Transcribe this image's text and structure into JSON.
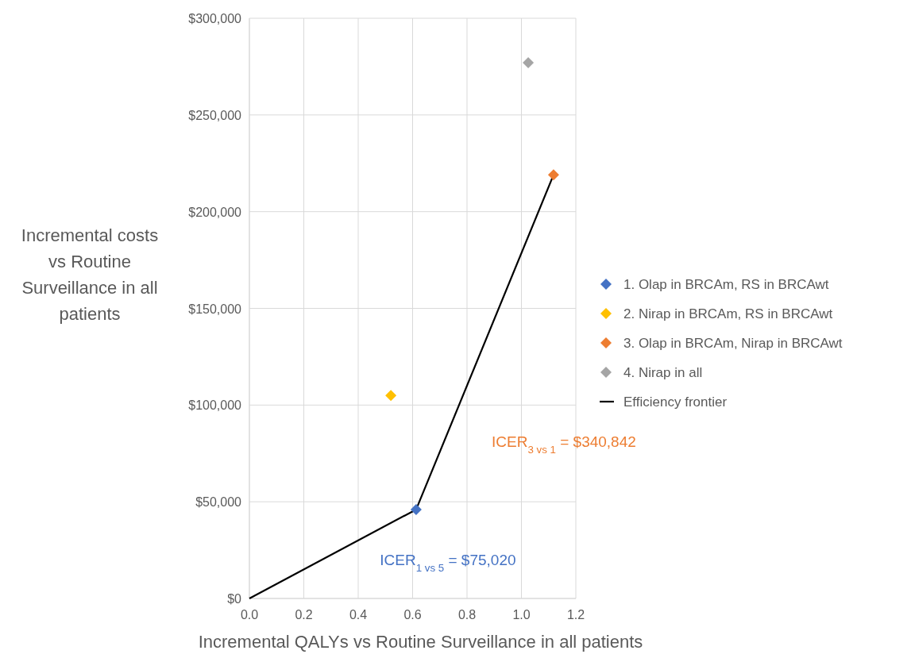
{
  "chart_data": {
    "type": "scatter",
    "xlabel": "Incremental QALYs vs Routine Surveillance in all patients",
    "ylabel": "Incremental costs vs Routine Surveillance in all patients",
    "xlim": [
      0,
      1.2
    ],
    "xticks": [
      {
        "value": 0,
        "label": "0.0"
      },
      {
        "value": 0.2,
        "label": "0.2"
      },
      {
        "value": 0.4,
        "label": "0.4"
      },
      {
        "value": 0.6,
        "label": "0.6"
      },
      {
        "value": 0.8,
        "label": "0.8"
      },
      {
        "value": 1,
        "label": "1.0"
      },
      {
        "value": 1.2,
        "label": "1.2"
      }
    ],
    "ylim": [
      0,
      300000
    ],
    "yticks": [
      {
        "value": 0,
        "label": "$0"
      },
      {
        "value": 50000,
        "label": "$50,000"
      },
      {
        "value": 100000,
        "label": "$100,000"
      },
      {
        "value": 150000,
        "label": "$150,000"
      },
      {
        "value": 200000,
        "label": "$200,000"
      },
      {
        "value": 250000,
        "label": "$250,000"
      },
      {
        "value": 300000,
        "label": "$300,000"
      }
    ],
    "grid": true,
    "legend": "right",
    "marker": "diamond",
    "series": [
      {
        "name": "1. Olap in BRCAm, RS in BRCAwt",
        "color": "#4472c4",
        "x": [
          0.613
        ],
        "values": [
          46000
        ]
      },
      {
        "name": "2. Nirap in BRCAm, RS in BRCAwt",
        "color": "#ffc000",
        "x": [
          0.52
        ],
        "values": [
          105000
        ]
      },
      {
        "name": "3. Olap in BRCAm, Nirap in BRCAwt",
        "color": "#ed7d31",
        "x": [
          1.118
        ],
        "values": [
          219000
        ]
      },
      {
        "name": "4. Nirap in all",
        "color": "#a5a5a5",
        "x": [
          1.025
        ],
        "values": [
          277000
        ]
      },
      {
        "name": "Efficiency frontier",
        "type": "line",
        "color": "#000000",
        "marker": "none",
        "line_style": "solid",
        "x": [
          0,
          0.613,
          1.118
        ],
        "values": [
          0,
          46000,
          219000
        ]
      }
    ],
    "annotations": [
      "ICER$_{1 vs 5}$ = $75,020",
      "ICER$_{3 vs 1}$ = $340,842"
    ]
  }
}
